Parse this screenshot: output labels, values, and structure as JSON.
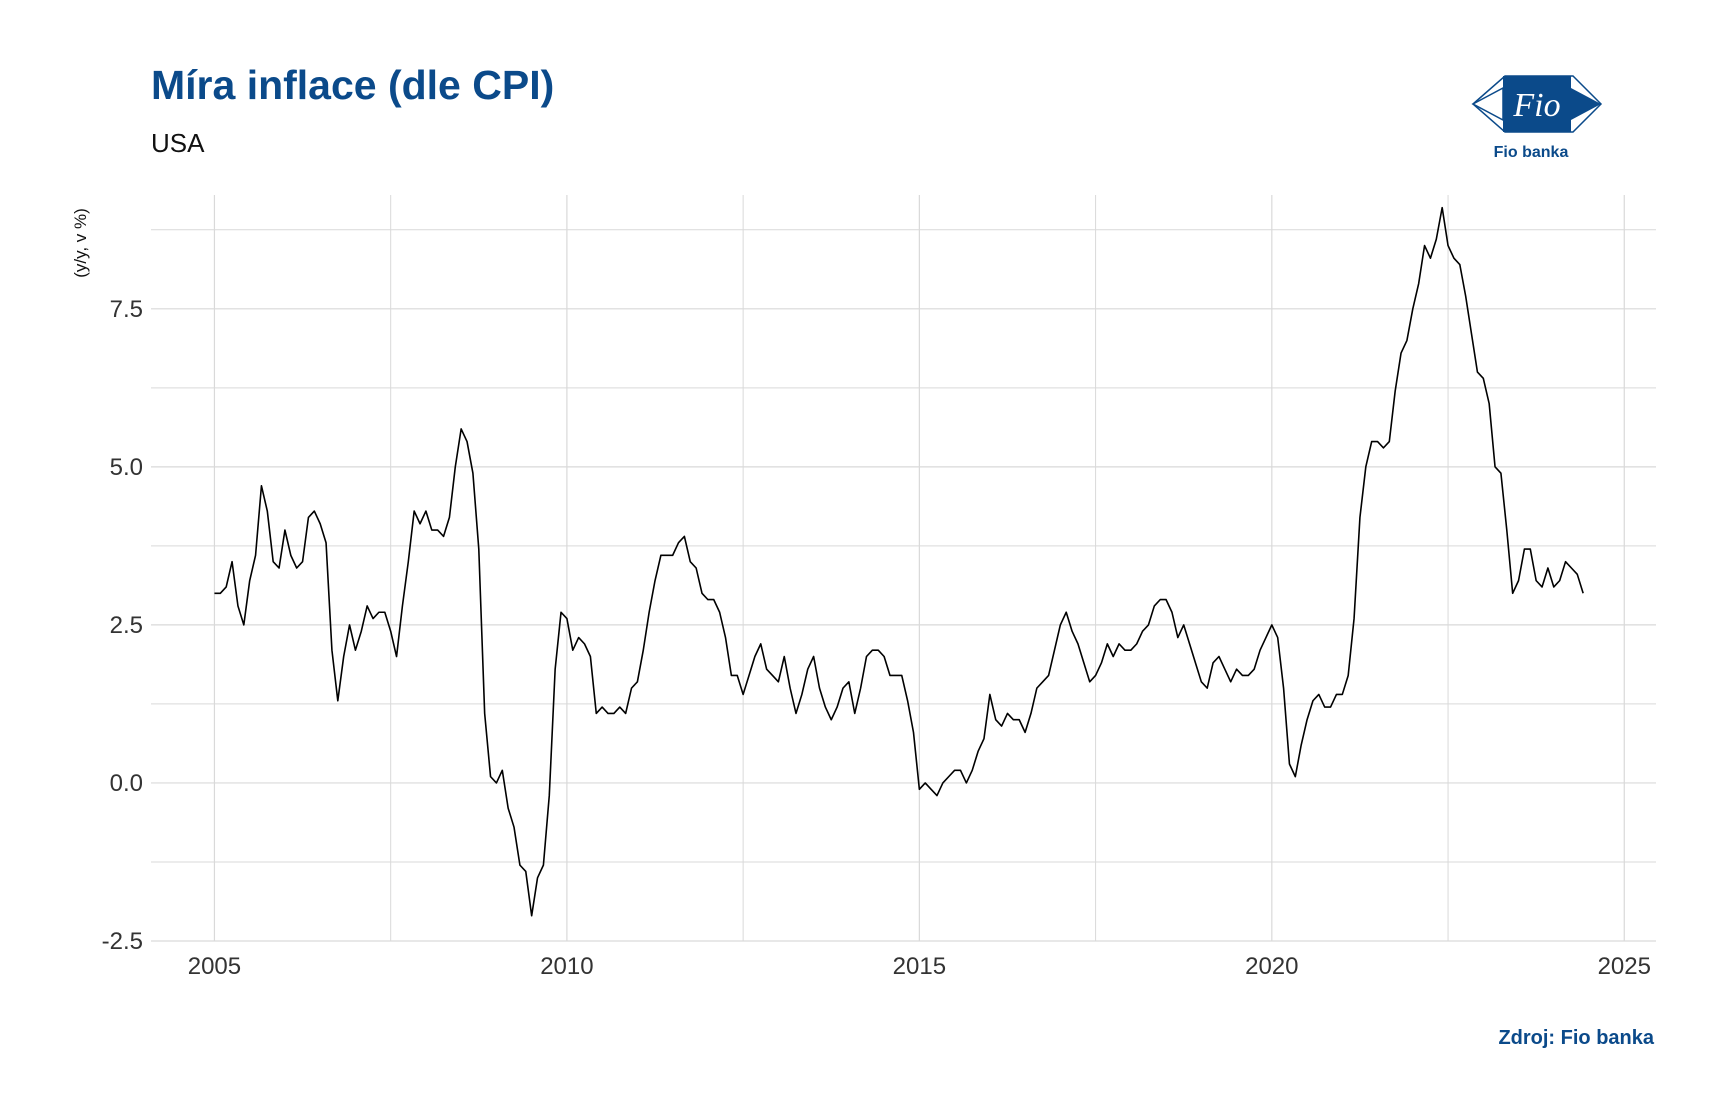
{
  "header": {
    "title": "Míra inflace (dle CPI)",
    "subtitle": "USA"
  },
  "logo": {
    "mark_text": "Fio",
    "caption": "Fio banka",
    "color": "#0b4a8a"
  },
  "footer": {
    "source": "Zdroj: Fio banka"
  },
  "chart_data": {
    "type": "line",
    "title": "Míra inflace (dle CPI)",
    "subtitle": "USA",
    "xlabel": "",
    "ylabel": "(y/y, v %)",
    "xlim": [
      2004.1,
      2025.45
    ],
    "ylim": [
      -2.5,
      9.3
    ],
    "x_ticks": [
      2005,
      2010,
      2015,
      2020,
      2025
    ],
    "x_tick_labels": [
      "2005",
      "2010",
      "2015",
      "2020",
      "2025"
    ],
    "y_ticks": [
      -2.5,
      0,
      2.5,
      5,
      7.5
    ],
    "y_tick_labels": [
      "-2.5",
      "0.0",
      "2.5",
      "5.0",
      "7.5"
    ],
    "grid": true,
    "line_color": "#000000",
    "grid_color": "#d9d9d9",
    "series": [
      {
        "x_start": "2005-01",
        "frequency": "monthly",
        "values": [
          3.0,
          3.0,
          3.1,
          3.5,
          2.8,
          2.5,
          3.2,
          3.6,
          4.7,
          4.3,
          3.5,
          3.4,
          4.0,
          3.6,
          3.4,
          3.5,
          4.2,
          4.3,
          4.1,
          3.8,
          2.1,
          1.3,
          2.0,
          2.5,
          2.1,
          2.4,
          2.8,
          2.6,
          2.7,
          2.7,
          2.4,
          2.0,
          2.8,
          3.5,
          4.3,
          4.1,
          4.3,
          4.0,
          4.0,
          3.9,
          4.2,
          5.0,
          5.6,
          5.4,
          4.9,
          3.7,
          1.1,
          0.1,
          0.0,
          0.2,
          -0.4,
          -0.7,
          -1.3,
          -1.4,
          -2.1,
          -1.5,
          -1.3,
          -0.2,
          1.8,
          2.7,
          2.6,
          2.1,
          2.3,
          2.2,
          2.0,
          1.1,
          1.2,
          1.1,
          1.1,
          1.2,
          1.1,
          1.5,
          1.6,
          2.1,
          2.7,
          3.2,
          3.6,
          3.6,
          3.6,
          3.8,
          3.9,
          3.5,
          3.4,
          3.0,
          2.9,
          2.9,
          2.7,
          2.3,
          1.7,
          1.7,
          1.4,
          1.7,
          2.0,
          2.2,
          1.8,
          1.7,
          1.6,
          2.0,
          1.5,
          1.1,
          1.4,
          1.8,
          2.0,
          1.5,
          1.2,
          1.0,
          1.2,
          1.5,
          1.6,
          1.1,
          1.5,
          2.0,
          2.1,
          2.1,
          2.0,
          1.7,
          1.7,
          1.7,
          1.3,
          0.8,
          -0.1,
          0.0,
          -0.1,
          -0.2,
          0.0,
          0.1,
          0.2,
          0.2,
          0.0,
          0.2,
          0.5,
          0.7,
          1.4,
          1.0,
          0.9,
          1.1,
          1.0,
          1.0,
          0.8,
          1.1,
          1.5,
          1.6,
          1.7,
          2.1,
          2.5,
          2.7,
          2.4,
          2.2,
          1.9,
          1.6,
          1.7,
          1.9,
          2.2,
          2.0,
          2.2,
          2.1,
          2.1,
          2.2,
          2.4,
          2.5,
          2.8,
          2.9,
          2.9,
          2.7,
          2.3,
          2.5,
          2.2,
          1.9,
          1.6,
          1.5,
          1.9,
          2.0,
          1.8,
          1.6,
          1.8,
          1.7,
          1.7,
          1.8,
          2.1,
          2.3,
          2.5,
          2.3,
          1.5,
          0.3,
          0.1,
          0.6,
          1.0,
          1.3,
          1.4,
          1.2,
          1.2,
          1.4,
          1.4,
          1.7,
          2.6,
          4.2,
          5.0,
          5.4,
          5.4,
          5.3,
          5.4,
          6.2,
          6.8,
          7.0,
          7.5,
          7.9,
          8.5,
          8.3,
          8.6,
          9.1,
          8.5,
          8.3,
          8.2,
          7.7,
          7.1,
          6.5,
          6.4,
          6.0,
          5.0,
          4.9,
          4.0,
          3.0,
          3.2,
          3.7,
          3.7,
          3.2,
          3.1,
          3.4,
          3.1,
          3.2,
          3.5,
          3.4,
          3.3,
          3.0
        ]
      }
    ]
  }
}
